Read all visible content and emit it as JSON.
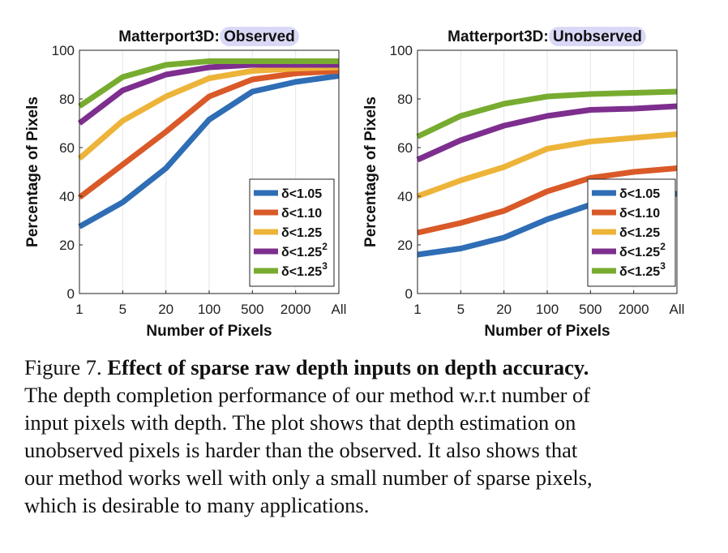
{
  "charts": [
    {
      "type": "line",
      "title_prefix": "Matterport3D: ",
      "title_highlight": "Observed",
      "xlabel": "Number of Pixels",
      "ylabel": "Percentage of Pixels",
      "categories": [
        "1",
        "5",
        "20",
        "100",
        "500",
        "2000",
        "All"
      ],
      "ylim": [
        0,
        100
      ],
      "yticks": [
        "0",
        "20",
        "40",
        "60",
        "80",
        "100"
      ],
      "grid": "vertical-light",
      "legend_position": "bottom-right",
      "series": [
        {
          "name": "δ<1.05",
          "color": "#2F6DB5",
          "values": [
            27.5,
            37.5,
            51.5,
            71.5,
            83,
            87,
            89.5
          ]
        },
        {
          "name": "δ<1.10",
          "color": "#D95A28",
          "values": [
            39.5,
            53,
            66.5,
            81,
            88,
            90.5,
            91.5
          ]
        },
        {
          "name": "δ<1.25",
          "color": "#EDB43A",
          "values": [
            55.5,
            71,
            81,
            88.5,
            91.5,
            92.5,
            93
          ]
        },
        {
          "name": "δ<1.25²",
          "color": "#7D2E8E",
          "values": [
            70,
            83.5,
            90,
            93,
            94,
            94,
            94
          ]
        },
        {
          "name": "δ<1.25³",
          "color": "#77AC30",
          "values": [
            77,
            89,
            94,
            95.5,
            95.5,
            95.5,
            95.5
          ]
        }
      ]
    },
    {
      "type": "line",
      "title_prefix": "Matterport3D: ",
      "title_highlight": "Unobserved",
      "xlabel": "Number of Pixels",
      "ylabel": "Percentage of Pixels",
      "categories": [
        "1",
        "5",
        "20",
        "100",
        "500",
        "2000",
        "All"
      ],
      "ylim": [
        0,
        100
      ],
      "yticks": [
        "0",
        "20",
        "40",
        "60",
        "80",
        "100"
      ],
      "grid": "vertical-light",
      "legend_position": "bottom-right",
      "series": [
        {
          "name": "δ<1.05",
          "color": "#2F6DB5",
          "values": [
            16,
            18.5,
            23,
            30.5,
            36.5,
            39.5,
            41
          ]
        },
        {
          "name": "δ<1.10",
          "color": "#D95A28",
          "values": [
            25,
            29,
            34,
            42,
            47.5,
            50,
            51.5
          ]
        },
        {
          "name": "δ<1.25",
          "color": "#EDB43A",
          "values": [
            40,
            46.5,
            52,
            59.5,
            62.5,
            64,
            65.5
          ]
        },
        {
          "name": "δ<1.25²",
          "color": "#7D2E8E",
          "values": [
            55,
            63,
            69,
            73,
            75.5,
            76,
            77
          ]
        },
        {
          "name": "δ<1.25³",
          "color": "#77AC30",
          "values": [
            64.5,
            73,
            78,
            81,
            82,
            82.5,
            83
          ]
        }
      ]
    }
  ],
  "caption": {
    "prefix": "Figure 7. ",
    "bold": "Effect of sparse raw depth inputs on depth accuracy.",
    "lines": [
      "The depth completion performance of our method w.r.t number of",
      "input pixels with depth.  The plot shows that depth estimation on",
      "unobserved pixels is harder than the observed.  It also shows that",
      "our method works well with only a small number of sparse pixels,",
      "which is desirable to many applications."
    ]
  },
  "colors": {
    "title_highlight_bg": "#D9D9F7",
    "axis": "#222222",
    "grid": "#E6E6E6"
  }
}
